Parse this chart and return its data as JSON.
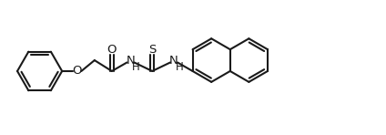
{
  "bg_color": "#ffffff",
  "line_color": "#1a1a1a",
  "line_width": 1.5,
  "font_size": 9.5,
  "figsize": [
    4.24,
    1.48
  ],
  "dpi": 100,
  "xlim": [
    0,
    10.6
  ],
  "ylim": [
    0,
    3.7
  ]
}
